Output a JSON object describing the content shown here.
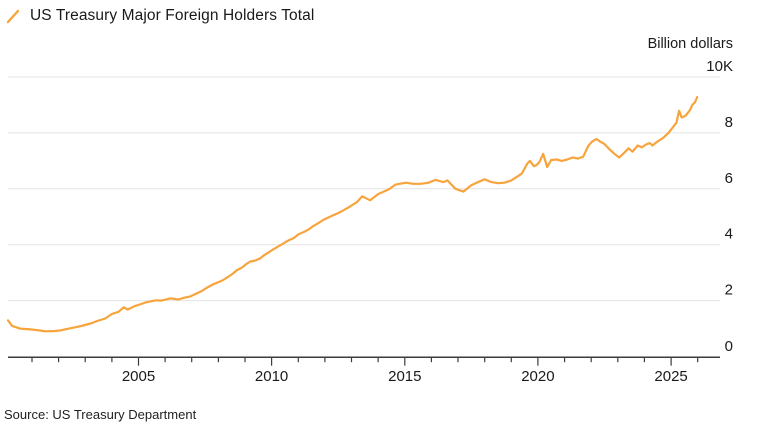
{
  "header": {
    "title": "US Treasury Major Foreign Holders Total"
  },
  "footer": {
    "source": "Source: US Treasury Department"
  },
  "colors": {
    "line": "#F7A43C",
    "grid": "#E4E4E4",
    "axis": "#3C3C3C",
    "text": "#1A1A1A"
  },
  "chart_data": {
    "type": "line",
    "title": "US Treasury Major Foreign Holders Total",
    "xlabel": "",
    "ylabel": "Billion dollars",
    "legend_position": "top-left",
    "grid": "horizontal",
    "xlim": [
      2000.1,
      2026.8
    ],
    "ylim": [
      0,
      10000
    ],
    "y_ticks": [
      {
        "value": 0,
        "label": "0"
      },
      {
        "value": 2000,
        "label": "2"
      },
      {
        "value": 4000,
        "label": "4"
      },
      {
        "value": 6000,
        "label": "6"
      },
      {
        "value": 8000,
        "label": "8"
      },
      {
        "value": 10000,
        "label": "10K"
      }
    ],
    "x_minor_tick_years": [
      2001,
      2002,
      2003,
      2004,
      2005,
      2006,
      2007,
      2008,
      2009,
      2010,
      2011,
      2012,
      2013,
      2014,
      2015,
      2016,
      2017,
      2018,
      2019,
      2020,
      2021,
      2022,
      2023,
      2024,
      2025,
      2026
    ],
    "x_major_ticks": [
      {
        "year": 2005,
        "label": "2005"
      },
      {
        "year": 2010,
        "label": "2010"
      },
      {
        "year": 2015,
        "label": "2015"
      },
      {
        "year": 2020,
        "label": "2020"
      },
      {
        "year": 2025,
        "label": "2025"
      }
    ],
    "series": [
      {
        "name": "US Treasury Major Foreign Holders Total",
        "color": "#F7A43C",
        "points": [
          [
            2000.1,
            1290
          ],
          [
            2000.25,
            1100
          ],
          [
            2000.55,
            1000
          ],
          [
            2000.95,
            970
          ],
          [
            2001.3,
            930
          ],
          [
            2001.5,
            900
          ],
          [
            2001.8,
            910
          ],
          [
            2002.05,
            930
          ],
          [
            2002.3,
            980
          ],
          [
            2002.6,
            1040
          ],
          [
            2002.85,
            1090
          ],
          [
            2003.2,
            1180
          ],
          [
            2003.45,
            1270
          ],
          [
            2003.75,
            1360
          ],
          [
            2004.0,
            1520
          ],
          [
            2004.25,
            1600
          ],
          [
            2004.45,
            1760
          ],
          [
            2004.6,
            1680
          ],
          [
            2004.85,
            1800
          ],
          [
            2005.05,
            1860
          ],
          [
            2005.25,
            1930
          ],
          [
            2005.45,
            1970
          ],
          [
            2005.65,
            2010
          ],
          [
            2005.85,
            2000
          ],
          [
            2006.2,
            2080
          ],
          [
            2006.35,
            2060
          ],
          [
            2006.5,
            2040
          ],
          [
            2006.7,
            2100
          ],
          [
            2006.95,
            2150
          ],
          [
            2007.15,
            2240
          ],
          [
            2007.35,
            2330
          ],
          [
            2007.55,
            2450
          ],
          [
            2007.8,
            2580
          ],
          [
            2008.0,
            2660
          ],
          [
            2008.15,
            2720
          ],
          [
            2008.35,
            2840
          ],
          [
            2008.55,
            2970
          ],
          [
            2008.7,
            3090
          ],
          [
            2008.9,
            3190
          ],
          [
            2009.05,
            3310
          ],
          [
            2009.2,
            3400
          ],
          [
            2009.35,
            3420
          ],
          [
            2009.55,
            3500
          ],
          [
            2009.7,
            3610
          ],
          [
            2009.9,
            3730
          ],
          [
            2010.05,
            3830
          ],
          [
            2010.25,
            3940
          ],
          [
            2010.45,
            4050
          ],
          [
            2010.65,
            4160
          ],
          [
            2010.85,
            4250
          ],
          [
            2011.0,
            4370
          ],
          [
            2011.2,
            4450
          ],
          [
            2011.4,
            4550
          ],
          [
            2011.55,
            4660
          ],
          [
            2011.75,
            4770
          ],
          [
            2011.95,
            4890
          ],
          [
            2012.15,
            4980
          ],
          [
            2012.3,
            5050
          ],
          [
            2012.5,
            5130
          ],
          [
            2012.7,
            5230
          ],
          [
            2012.9,
            5340
          ],
          [
            2013.05,
            5430
          ],
          [
            2013.2,
            5520
          ],
          [
            2013.4,
            5730
          ],
          [
            2013.7,
            5590
          ],
          [
            2014.0,
            5810
          ],
          [
            2014.4,
            5980
          ],
          [
            2014.65,
            6150
          ],
          [
            2015.05,
            6220
          ],
          [
            2015.3,
            6180
          ],
          [
            2015.6,
            6180
          ],
          [
            2015.9,
            6220
          ],
          [
            2016.15,
            6320
          ],
          [
            2016.45,
            6240
          ],
          [
            2016.6,
            6300
          ],
          [
            2016.9,
            6000
          ],
          [
            2017.2,
            5900
          ],
          [
            2017.5,
            6130
          ],
          [
            2017.8,
            6260
          ],
          [
            2018.0,
            6340
          ],
          [
            2018.25,
            6240
          ],
          [
            2018.5,
            6200
          ],
          [
            2018.75,
            6220
          ],
          [
            2019.0,
            6300
          ],
          [
            2019.25,
            6450
          ],
          [
            2019.4,
            6550
          ],
          [
            2019.6,
            6900
          ],
          [
            2019.7,
            7000
          ],
          [
            2019.85,
            6810
          ],
          [
            2019.95,
            6850
          ],
          [
            2020.05,
            6950
          ],
          [
            2020.2,
            7250
          ],
          [
            2020.35,
            6780
          ],
          [
            2020.5,
            7030
          ],
          [
            2020.7,
            7050
          ],
          [
            2020.9,
            7000
          ],
          [
            2021.1,
            7050
          ],
          [
            2021.3,
            7120
          ],
          [
            2021.5,
            7080
          ],
          [
            2021.7,
            7150
          ],
          [
            2021.9,
            7550
          ],
          [
            2022.05,
            7700
          ],
          [
            2022.2,
            7780
          ],
          [
            2022.35,
            7680
          ],
          [
            2022.5,
            7600
          ],
          [
            2022.65,
            7450
          ],
          [
            2022.85,
            7270
          ],
          [
            2023.05,
            7120
          ],
          [
            2023.2,
            7250
          ],
          [
            2023.4,
            7450
          ],
          [
            2023.55,
            7330
          ],
          [
            2023.75,
            7550
          ],
          [
            2023.9,
            7480
          ],
          [
            2024.05,
            7580
          ],
          [
            2024.2,
            7640
          ],
          [
            2024.3,
            7550
          ],
          [
            2024.5,
            7700
          ],
          [
            2024.7,
            7820
          ],
          [
            2024.9,
            8000
          ],
          [
            2025.05,
            8180
          ],
          [
            2025.2,
            8360
          ],
          [
            2025.3,
            8790
          ],
          [
            2025.4,
            8550
          ],
          [
            2025.55,
            8620
          ],
          [
            2025.7,
            8800
          ],
          [
            2025.8,
            9000
          ],
          [
            2025.9,
            9100
          ],
          [
            2025.98,
            9280
          ]
        ]
      }
    ]
  }
}
